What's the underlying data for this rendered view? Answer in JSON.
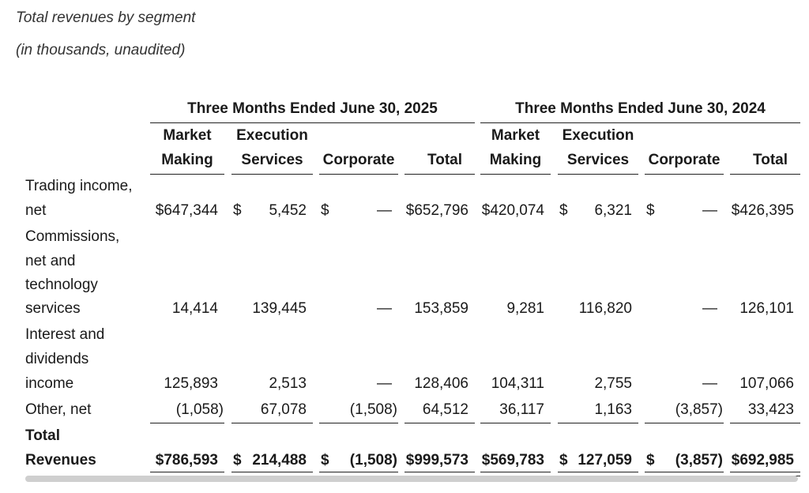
{
  "title": "Total revenues by segment",
  "subtitle": "(in thousands, unaudited)",
  "periods": [
    "Three Months Ended June 30, 2025",
    "Three Months Ended June 30, 2024"
  ],
  "columns": [
    {
      "l1": "Market",
      "l2": "Making"
    },
    {
      "l1": "Execution",
      "l2": "Services"
    },
    {
      "l1": "",
      "l2": "Corporate"
    },
    {
      "l1": "",
      "l2": "Total"
    },
    {
      "l1": "Market",
      "l2": "Making"
    },
    {
      "l1": "Execution",
      "l2": "Services"
    },
    {
      "l1": "",
      "l2": "Corporate"
    },
    {
      "l1": "",
      "l2": "Total"
    }
  ],
  "rows": [
    {
      "label": [
        "Trading income,",
        "net"
      ],
      "cells": [
        {
          "sym": "",
          "val": "$647,344"
        },
        {
          "sym": "$",
          "val": "5,452"
        },
        {
          "sym": "$",
          "val": "—"
        },
        {
          "sym": "",
          "val": "$652,796"
        },
        {
          "sym": "",
          "val": "$420,074"
        },
        {
          "sym": "$",
          "val": "6,321"
        },
        {
          "sym": "$",
          "val": "—"
        },
        {
          "sym": "",
          "val": "$426,395"
        }
      ]
    },
    {
      "label": [
        "Commissions,",
        "net and",
        "technology",
        "services"
      ],
      "cells": [
        {
          "sym": "",
          "val": "14,414"
        },
        {
          "sym": "",
          "val": "139,445"
        },
        {
          "sym": "",
          "val": "—"
        },
        {
          "sym": "",
          "val": "153,859"
        },
        {
          "sym": "",
          "val": "9,281"
        },
        {
          "sym": "",
          "val": "116,820"
        },
        {
          "sym": "",
          "val": "—"
        },
        {
          "sym": "",
          "val": "126,101"
        }
      ]
    },
    {
      "label": [
        "Interest and",
        "dividends",
        "income"
      ],
      "cells": [
        {
          "sym": "",
          "val": "125,893"
        },
        {
          "sym": "",
          "val": "2,513"
        },
        {
          "sym": "",
          "val": "—"
        },
        {
          "sym": "",
          "val": "128,406"
        },
        {
          "sym": "",
          "val": "104,311"
        },
        {
          "sym": "",
          "val": "2,755"
        },
        {
          "sym": "",
          "val": "—"
        },
        {
          "sym": "",
          "val": "107,066"
        }
      ]
    },
    {
      "label": [
        "Other, net"
      ],
      "cells": [
        {
          "sym": "",
          "val": "(1,058)"
        },
        {
          "sym": "",
          "val": "67,078"
        },
        {
          "sym": "",
          "val": "(1,508)"
        },
        {
          "sym": "",
          "val": "64,512"
        },
        {
          "sym": "",
          "val": "36,117"
        },
        {
          "sym": "",
          "val": "1,163"
        },
        {
          "sym": "",
          "val": "(3,857)"
        },
        {
          "sym": "",
          "val": "33,423"
        }
      ]
    },
    {
      "label": [
        "Total",
        "Revenues"
      ],
      "bold": true,
      "cells": [
        {
          "sym": "",
          "val": "$786,593"
        },
        {
          "sym": "$",
          "val": "214,488"
        },
        {
          "sym": "$",
          "val": "(1,508)"
        },
        {
          "sym": "",
          "val": "$999,573"
        },
        {
          "sym": "",
          "val": "$569,783"
        },
        {
          "sym": "$",
          "val": "127,059"
        },
        {
          "sym": "$",
          "val": "(3,857)"
        },
        {
          "sym": "",
          "val": "$692,985"
        }
      ]
    }
  ]
}
